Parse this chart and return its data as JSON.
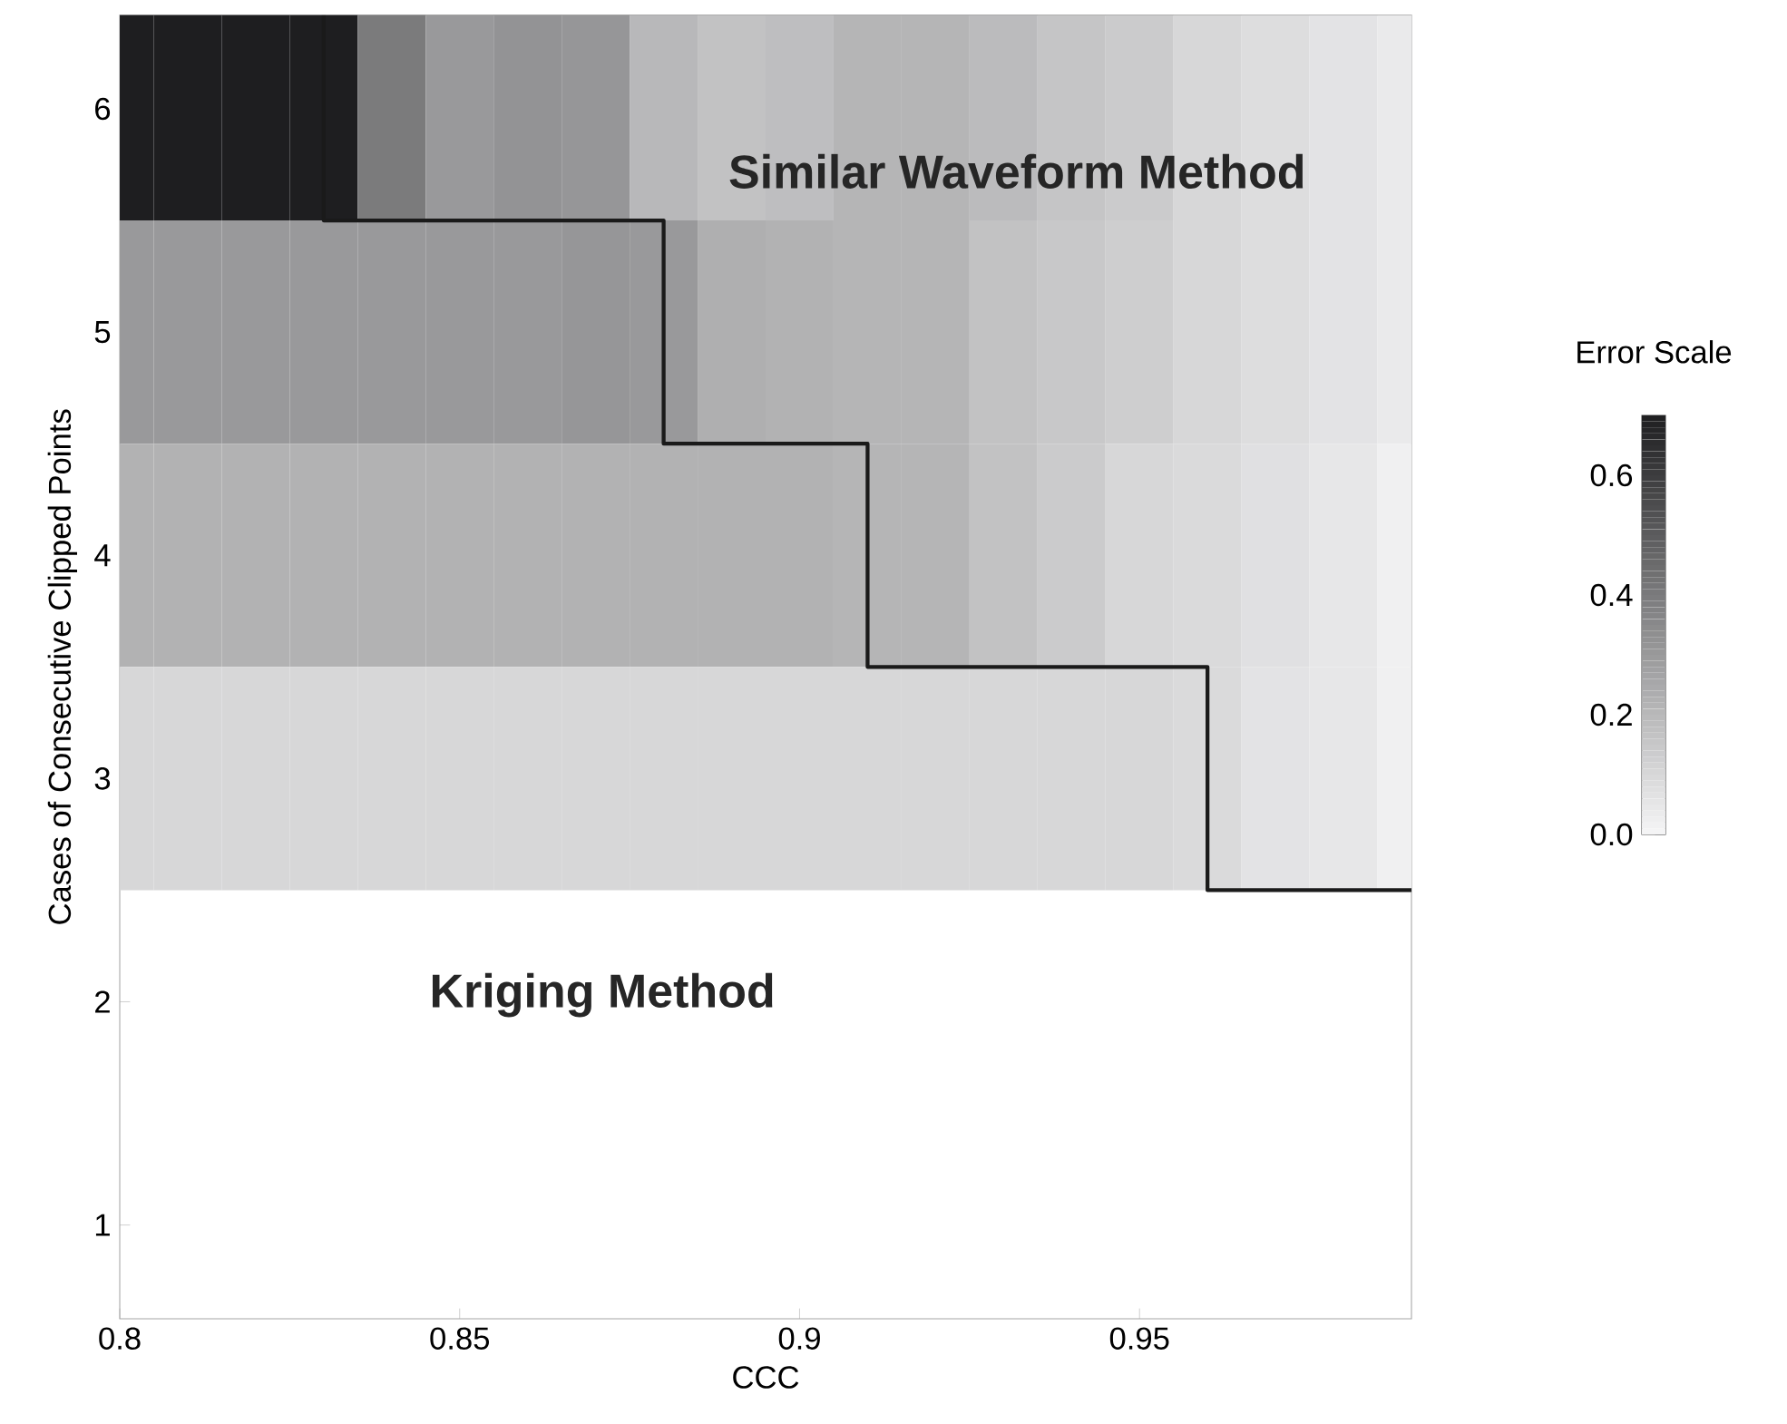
{
  "chart_data": {
    "type": "heatmap",
    "xlabel": "CCC",
    "ylabel": "Cases of Consecutive Clipped Points",
    "clabel": "Error Scale",
    "x": [
      0.8,
      0.81,
      0.82,
      0.83,
      0.84,
      0.85,
      0.86,
      0.87,
      0.88,
      0.89,
      0.9,
      0.91,
      0.92,
      0.93,
      0.94,
      0.95,
      0.96,
      0.97,
      0.98,
      0.99
    ],
    "xlim": [
      0.8,
      0.99
    ],
    "xticks": [
      0.8,
      0.85,
      0.9,
      0.95
    ],
    "y": [
      6,
      5,
      4,
      3
    ],
    "ylim": [
      0.58,
      6.42
    ],
    "yticks": [
      1,
      2,
      3,
      4,
      5,
      6
    ],
    "cells": [
      [
        0.7,
        0.7,
        0.7,
        0.7,
        0.4,
        0.3,
        0.32,
        0.31,
        0.2,
        0.17,
        0.18,
        0.21,
        0.21,
        0.19,
        0.16,
        0.14,
        0.1,
        0.08,
        0.06,
        0.04
      ],
      [
        0.3,
        0.3,
        0.3,
        0.3,
        0.3,
        0.3,
        0.3,
        0.31,
        0.3,
        0.23,
        0.22,
        0.21,
        0.21,
        0.17,
        0.15,
        0.13,
        0.1,
        0.08,
        0.06,
        0.04
      ],
      [
        0.22,
        0.22,
        0.22,
        0.22,
        0.22,
        0.22,
        0.22,
        0.22,
        0.22,
        0.22,
        0.22,
        0.21,
        0.21,
        0.17,
        0.14,
        0.1,
        0.09,
        0.07,
        0.05,
        0.02
      ],
      [
        0.1,
        0.1,
        0.1,
        0.1,
        0.1,
        0.1,
        0.1,
        0.1,
        0.1,
        0.1,
        0.1,
        0.1,
        0.1,
        0.1,
        0.1,
        0.1,
        0.09,
        0.06,
        0.05,
        0.02
      ]
    ],
    "clim": [
      0,
      0.7
    ],
    "cticks": [
      {
        "value": 0,
        "label": "0.0"
      },
      0.2,
      0.4,
      0.6
    ],
    "series": [
      {
        "type": "line",
        "color": "#1a1a1a",
        "x": [
          0.83,
          0.83,
          0.88,
          0.88,
          0.91,
          0.91,
          0.96,
          0.96,
          0.99
        ],
        "values": [
          6.42,
          5.5,
          5.5,
          4.5,
          4.5,
          3.5,
          3.5,
          2.5,
          2.5
        ]
      }
    ],
    "annotations": [
      "Similar Waveform Method",
      "Kriging Method"
    ]
  }
}
